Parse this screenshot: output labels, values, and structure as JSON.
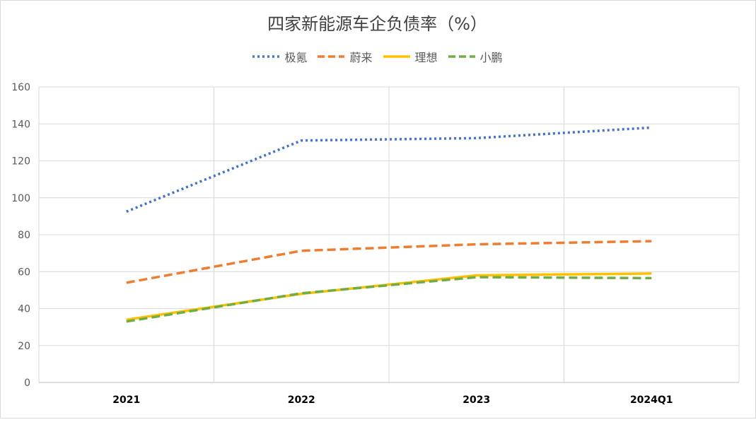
{
  "chart_data": {
    "type": "line",
    "title": "四家新能源车企负债率（%）",
    "xlabel": "",
    "ylabel": "",
    "categories": [
      "2021",
      "2022",
      "2023",
      "2024Q1"
    ],
    "ylim": [
      0,
      160
    ],
    "yticks": [
      0,
      20,
      40,
      60,
      80,
      100,
      120,
      140,
      160
    ],
    "grid": true,
    "legend_position": "top",
    "series": [
      {
        "name": "极氪",
        "values": [
          92.5,
          131,
          132.3,
          138
        ],
        "color": "#4472C4",
        "style": "dotted"
      },
      {
        "name": "蔚来",
        "values": [
          54,
          71.3,
          74.8,
          76.5
        ],
        "color": "#ED7D31",
        "style": "dashed"
      },
      {
        "name": "理想",
        "values": [
          34,
          48,
          58,
          59
        ],
        "color": "#FFC000",
        "style": "solid"
      },
      {
        "name": "小鹏",
        "values": [
          33,
          48.3,
          57,
          56.5
        ],
        "color": "#70AD47",
        "style": "dashed"
      }
    ]
  }
}
